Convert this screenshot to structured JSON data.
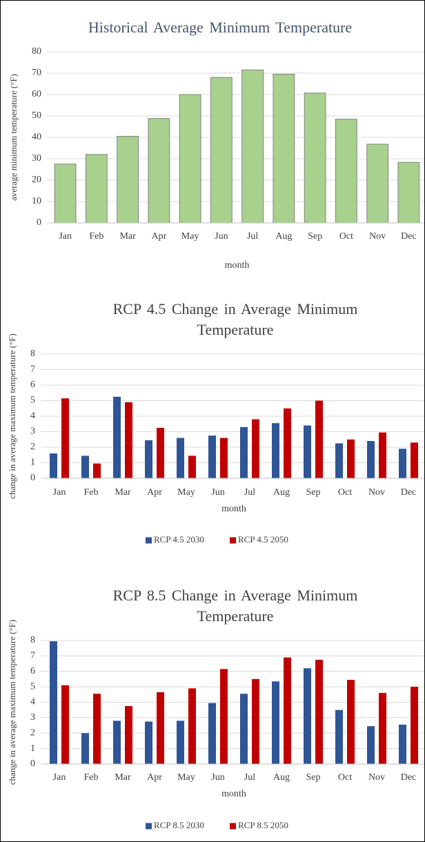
{
  "chart_data": [
    {
      "type": "bar",
      "title": "Historical Average Minimum Temperature",
      "x_label": "month",
      "y_label": "average minimum temperature (°F)",
      "categories": [
        "Jan",
        "Feb",
        "Mar",
        "Apr",
        "May",
        "Jun",
        "Jul",
        "Aug",
        "Sep",
        "Oct",
        "Nov",
        "Dec"
      ],
      "values": [
        27.5,
        32,
        40.5,
        48.8,
        60,
        68,
        71.5,
        69.5,
        60.7,
        48.5,
        36.8,
        28.3
      ],
      "color": "#a9d18e",
      "ylim": [
        0,
        80
      ],
      "yticks": [
        0,
        10,
        20,
        30,
        40,
        50,
        60,
        70,
        80
      ],
      "grid": true
    },
    {
      "type": "bar",
      "title": "RCP 4.5 Change in Average Minimum Temperature",
      "x_label": "month",
      "y_label": "change in average maximum temperature (°F)",
      "categories": [
        "Jan",
        "Feb",
        "Mar",
        "Apr",
        "May",
        "Jun",
        "Jul",
        "Aug",
        "Sep",
        "Oct",
        "Nov",
        "Dec"
      ],
      "series": [
        {
          "name": "RCP 4.5 2030",
          "color": "#2f5597",
          "values": [
            1.6,
            1.45,
            5.25,
            2.45,
            2.6,
            2.75,
            3.3,
            3.55,
            3.4,
            2.25,
            2.4,
            1.9
          ]
        },
        {
          "name": "RCP 4.5 2050",
          "color": "#c00000",
          "values": [
            5.15,
            0.95,
            4.9,
            3.25,
            1.45,
            2.6,
            3.8,
            4.5,
            5.0,
            2.5,
            2.95,
            2.3
          ]
        }
      ],
      "ylim": [
        0,
        8
      ],
      "yticks": [
        0,
        1,
        2,
        3,
        4,
        5,
        6,
        7,
        8
      ],
      "grid": true,
      "legend": "bottom"
    },
    {
      "type": "bar",
      "title": "RCP 8.5 Change in Average Minimum Temperature",
      "x_label": "month",
      "y_label": "change in average maximum temperature (°F)",
      "categories": [
        "Jan",
        "Feb",
        "Mar",
        "Apr",
        "May",
        "Jun",
        "Jul",
        "Aug",
        "Sep",
        "Oct",
        "Nov",
        "Dec"
      ],
      "series": [
        {
          "name": "RCP 8.5 2030",
          "color": "#2f5597",
          "values": [
            7.95,
            2.0,
            2.8,
            2.75,
            2.8,
            3.95,
            4.55,
            5.35,
            6.2,
            3.5,
            2.45,
            2.55
          ]
        },
        {
          "name": "RCP 8.5 2050",
          "color": "#c00000",
          "values": [
            5.1,
            4.55,
            3.75,
            4.65,
            4.9,
            6.15,
            5.5,
            6.9,
            6.75,
            5.45,
            4.6,
            5.0
          ]
        }
      ],
      "ylim": [
        0,
        8
      ],
      "yticks": [
        0,
        1,
        2,
        3,
        4,
        5,
        6,
        7,
        8
      ],
      "grid": true,
      "legend": "bottom"
    }
  ]
}
